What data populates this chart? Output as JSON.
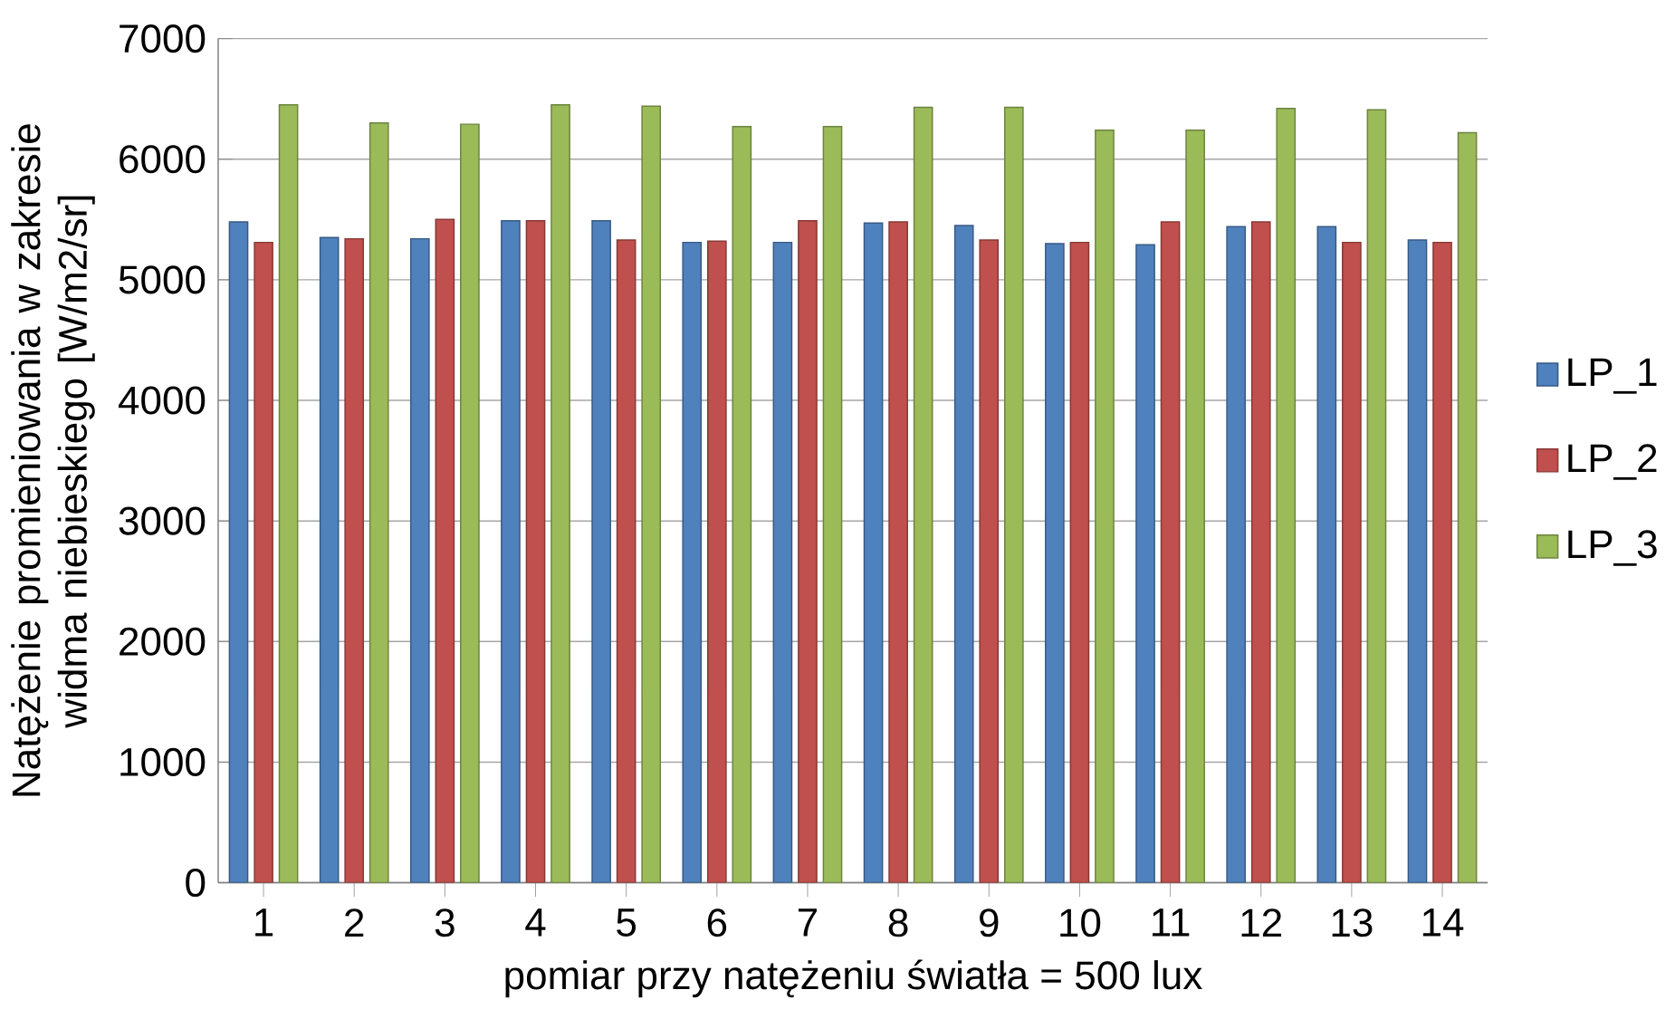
{
  "chart_data": {
    "type": "bar",
    "xlabel": "pomiar przy natężeniu światła = 500 lux",
    "ylabel": "Natężenie promieniowania w zakresie widma niebieskiego [W/m2/sr]",
    "categories": [
      "1",
      "2",
      "3",
      "4",
      "5",
      "6",
      "7",
      "8",
      "9",
      "10",
      "11",
      "12",
      "13",
      "14"
    ],
    "series": [
      {
        "name": "LP_1",
        "color": "#4f81bd",
        "values": [
          5480,
          5350,
          5340,
          5490,
          5490,
          5310,
          5310,
          5470,
          5450,
          5300,
          5290,
          5440,
          5440,
          5330
        ]
      },
      {
        "name": "LP_2",
        "color": "#c0504d",
        "values": [
          5310,
          5340,
          5500,
          5490,
          5330,
          5320,
          5490,
          5480,
          5330,
          5310,
          5480,
          5480,
          5310,
          5310
        ]
      },
      {
        "name": "LP_3",
        "color": "#9bbb59",
        "values": [
          6450,
          6300,
          6290,
          6450,
          6440,
          6270,
          6270,
          6430,
          6430,
          6240,
          6240,
          6420,
          6410,
          6220
        ]
      }
    ],
    "ylim": [
      0,
      7000
    ],
    "yticks": [
      0,
      1000,
      2000,
      3000,
      4000,
      5000,
      6000,
      7000
    ],
    "grid": "y",
    "legend": "right"
  }
}
